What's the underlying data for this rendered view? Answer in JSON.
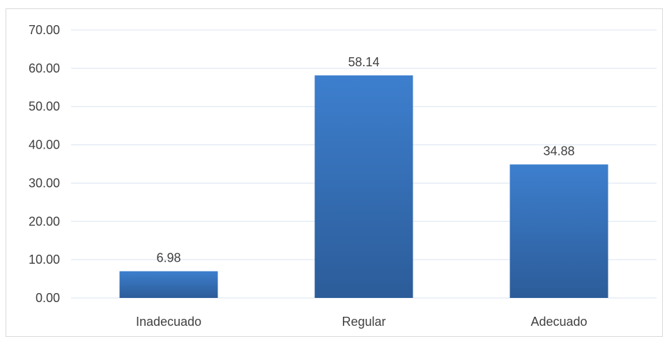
{
  "chart_data": {
    "type": "bar",
    "categories": [
      "Inadecuado",
      "Regular",
      "Adecuado"
    ],
    "values": [
      6.98,
      58.14,
      34.88
    ],
    "data_labels": [
      "6.98",
      "58.14",
      "34.88"
    ],
    "ylim": [
      0,
      70
    ],
    "yticks": [
      0,
      10,
      20,
      30,
      40,
      50,
      60,
      70
    ],
    "ytick_labels": [
      "0.00",
      "10.00",
      "20.00",
      "30.00",
      "40.00",
      "50.00",
      "60.00",
      "70.00"
    ],
    "grid": true,
    "legend": "none",
    "colors": {
      "bar_top": "#3d7fce",
      "bar_bottom": "#2c5c99",
      "grid": "#d9e3f0",
      "text": "#404040"
    }
  }
}
